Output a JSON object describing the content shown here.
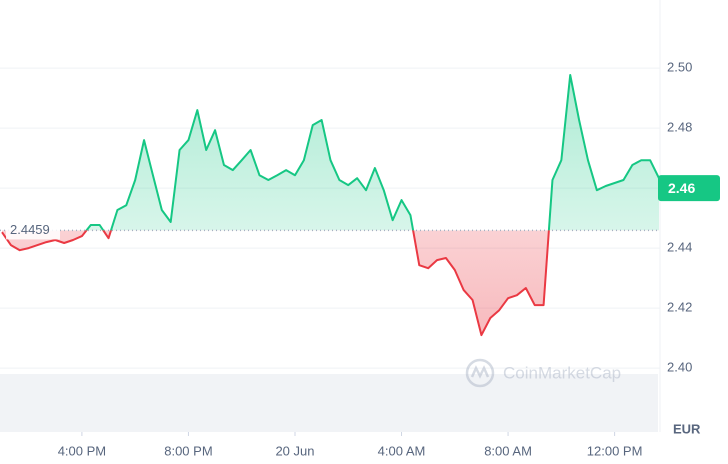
{
  "chart_data": {
    "type": "line",
    "currency": "EUR",
    "watermark": "CoinMarketCap",
    "baseline": 2.4459,
    "baseline_label": "2.4459",
    "last_price": {
      "value": 2.46,
      "label": "2.46"
    },
    "up_color": "#16c784",
    "down_color": "#ea3943",
    "xlim": [
      0,
      74
    ],
    "xticks": [
      {
        "value": 9,
        "label": "4:00 PM"
      },
      {
        "value": 21,
        "label": "8:00 PM"
      },
      {
        "value": 33,
        "label": "20 Jun"
      },
      {
        "value": 45,
        "label": "4:00 AM"
      },
      {
        "value": 57,
        "label": "8:00 AM"
      },
      {
        "value": 69,
        "label": "12:00 PM"
      }
    ],
    "ylim": [
      2.3787,
      2.5227
    ],
    "yticks": [
      {
        "value": 2.4,
        "label": "2.40"
      },
      {
        "value": 2.42,
        "label": "2.42"
      },
      {
        "value": 2.44,
        "label": "2.44"
      },
      {
        "value": 2.46,
        "label": "2.46"
      },
      {
        "value": 2.48,
        "label": "2.48"
      },
      {
        "value": 2.5,
        "label": "2.50"
      }
    ],
    "grid": true,
    "series": [
      {
        "name": "Price",
        "values": [
          2.4453,
          2.441,
          2.4393,
          2.44,
          2.441,
          2.442,
          2.4427,
          2.4417,
          2.4427,
          2.444,
          2.4477,
          2.4477,
          2.4433,
          2.4527,
          2.4543,
          2.4627,
          2.476,
          2.4643,
          2.4527,
          2.4487,
          2.4727,
          2.476,
          2.486,
          2.4727,
          2.4793,
          2.4677,
          2.466,
          2.4693,
          2.4727,
          2.4643,
          2.4627,
          2.4643,
          2.466,
          2.4643,
          2.4693,
          2.481,
          2.4827,
          2.4693,
          2.4627,
          2.461,
          2.4633,
          2.4593,
          2.4667,
          2.4593,
          2.4493,
          2.456,
          2.451,
          2.4343,
          2.4333,
          2.436,
          2.4367,
          2.4327,
          2.426,
          2.4227,
          2.411,
          2.4167,
          2.4193,
          2.4233,
          2.4243,
          2.4267,
          2.421,
          2.421,
          2.4627,
          2.4693,
          2.4977,
          2.4827,
          2.4693,
          2.4593,
          2.4607,
          2.4617,
          2.4627,
          2.4677,
          2.4693,
          2.4693,
          2.4633
        ]
      }
    ]
  }
}
